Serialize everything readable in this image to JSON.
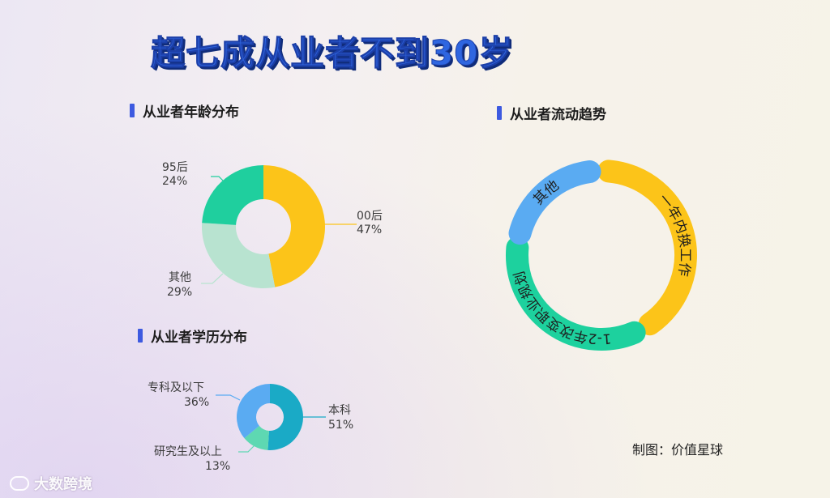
{
  "title": "超七成从业者不到30岁",
  "credit": "制图：价值星球",
  "watermark": "大数跨境",
  "chart_data": [
    {
      "type": "pie",
      "title": "从业者年龄分布",
      "slices": [
        {
          "name": "00后",
          "value": 47,
          "label": "47%",
          "color": "#fcc419"
        },
        {
          "name": "其他",
          "value": 29,
          "label": "29%",
          "color": "#b8e3d0"
        },
        {
          "name": "95后",
          "value": 24,
          "label": "24%",
          "color": "#1fcf9e"
        }
      ]
    },
    {
      "type": "pie",
      "title": "从业者学历分布",
      "slices": [
        {
          "name": "本科",
          "value": 51,
          "label": "51%",
          "color": "#1aaac6"
        },
        {
          "name": "研究生及以上",
          "value": 13,
          "label": "13%",
          "color": "#5ed8b2"
        },
        {
          "name": "专科及以下",
          "value": 36,
          "label": "36%",
          "color": "#5aabf2"
        }
      ]
    },
    {
      "type": "pie",
      "title": "从业者流动趋势",
      "slices": [
        {
          "name": "一年内换工作",
          "color": "#fcc419"
        },
        {
          "name": "1-2年改变职业规划",
          "color": "#1dd19e"
        },
        {
          "name": "其他",
          "color": "#5aabf2"
        }
      ]
    }
  ]
}
